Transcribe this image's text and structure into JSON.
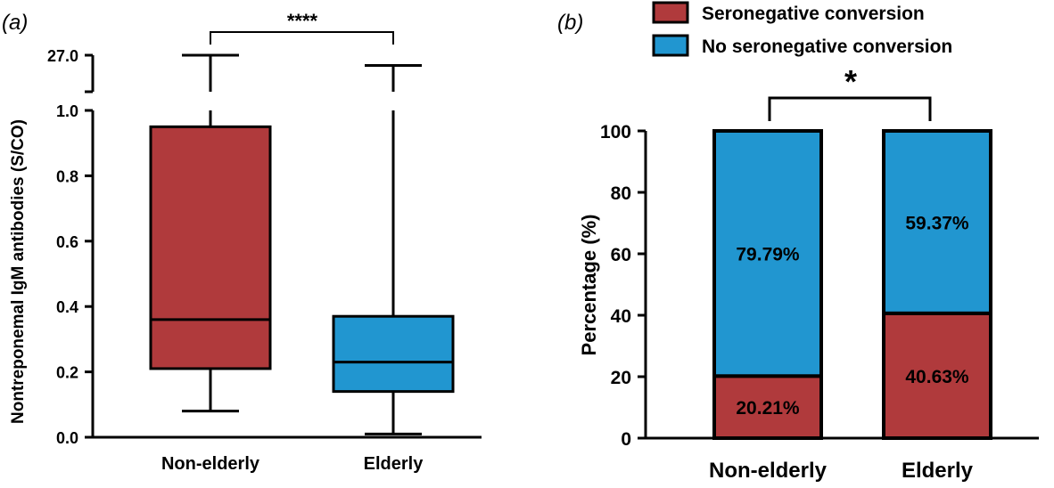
{
  "colors": {
    "red": "#B03A3C",
    "blue": "#2196D0",
    "black": "#000000"
  },
  "chart_data": [
    {
      "type": "box",
      "panel_label": "(a)",
      "ylabel": "Nontreponemal IgM antibodies (S/CO)",
      "categories": [
        "Non-elderly",
        "Elderly"
      ],
      "yticks": [
        "0.0",
        "0.2",
        "0.4",
        "0.6",
        "0.8",
        "1.0"
      ],
      "ylim": [
        0,
        1.0
      ],
      "axis_break": {
        "upper_label": "27.0",
        "upper_value": 27.0
      },
      "boxes": [
        {
          "name": "Non-elderly",
          "color": "#B03A3C",
          "whisker_low": 0.08,
          "q1": 0.21,
          "median": 0.36,
          "q3": 0.95,
          "whisker_high": 27.0
        },
        {
          "name": "Elderly",
          "color": "#2196D0",
          "whisker_low": 0.01,
          "q1": 0.14,
          "median": 0.23,
          "q3": 0.37,
          "whisker_high": 20.0
        }
      ],
      "significance": "****"
    },
    {
      "type": "bar",
      "stacked": true,
      "panel_label": "(b)",
      "ylabel": "Percentage (%)",
      "categories": [
        "Non-elderly",
        "Elderly"
      ],
      "yticks": [
        "0",
        "20",
        "40",
        "60",
        "80",
        "100"
      ],
      "ylim": [
        0,
        100
      ],
      "series": [
        {
          "name": "Seronegative conversion",
          "color": "#B03A3C",
          "values": [
            20.21,
            40.63
          ],
          "labels": [
            "20.21%",
            "40.63%"
          ]
        },
        {
          "name": "No seronegative conversion",
          "color": "#2196D0",
          "values": [
            79.79,
            59.37
          ],
          "labels": [
            "79.79%",
            "59.37%"
          ]
        }
      ],
      "legend": [
        "Seronegative conversion",
        "No seronegative conversion"
      ],
      "legend_position": "top",
      "significance": "*"
    }
  ]
}
